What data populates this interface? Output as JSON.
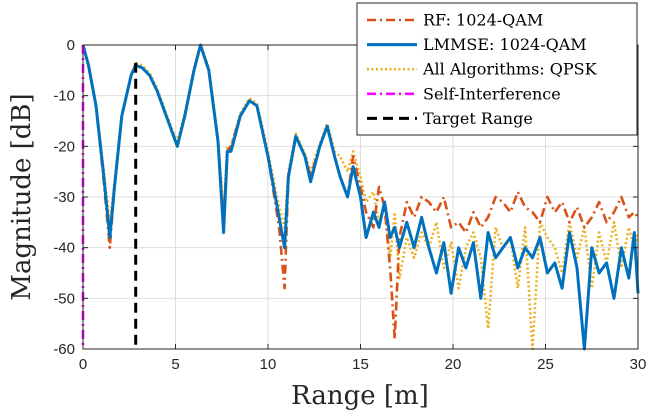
{
  "chart_data": {
    "type": "line",
    "title": "",
    "xlabel": "Range [m]",
    "ylabel": "Magnitude [dB]",
    "xlim": [
      0,
      30
    ],
    "ylim": [
      -60,
      0
    ],
    "xticks": [
      0,
      5,
      10,
      15,
      20,
      25,
      30
    ],
    "yticks": [
      0,
      -10,
      -20,
      -30,
      -40,
      -50,
      -60
    ],
    "grid": true,
    "legend_position": "top-right",
    "series": [
      {
        "name": "RF: 1024-QAM",
        "color": "#D95319",
        "style": "dash-dot",
        "x": [
          0,
          0.3,
          0.7,
          1.1,
          1.45,
          1.7,
          2.1,
          2.6,
          2.85,
          3.2,
          3.6,
          4.0,
          4.4,
          4.8,
          5.1,
          5.5,
          6.0,
          6.35,
          6.8,
          7.3,
          7.6,
          7.8,
          8.0,
          8.5,
          9.0,
          9.4,
          10.0,
          10.6,
          10.9,
          11.1,
          11.5,
          12.0,
          12.3,
          12.8,
          13.2,
          13.6,
          13.9,
          14.3,
          14.6,
          15.0,
          15.3,
          15.7,
          16.0,
          16.3,
          16.6,
          16.85,
          17.1,
          17.5,
          17.9,
          18.3,
          18.7,
          19.1,
          19.5,
          19.9,
          20.3,
          20.7,
          21.1,
          21.5,
          21.9,
          22.3,
          22.7,
          23.1,
          23.5,
          23.9,
          24.3,
          24.7,
          25.1,
          25.5,
          25.9,
          26.3,
          26.7,
          27.1,
          27.5,
          27.9,
          28.3,
          28.7,
          29.1,
          29.5,
          29.8,
          30.0
        ],
        "y": [
          0,
          -4,
          -12,
          -26,
          -40,
          -28,
          -14,
          -6,
          -4,
          -4.5,
          -6,
          -9,
          -13,
          -17,
          -20,
          -14,
          -5,
          0,
          -5,
          -19,
          -35,
          -21,
          -20,
          -14,
          -11,
          -12,
          -22,
          -36,
          -48,
          -26,
          -18,
          -22,
          -26,
          -20,
          -16,
          -22,
          -26,
          -30,
          -22,
          -28,
          -33,
          -36,
          -28,
          -32,
          -44,
          -58,
          -38,
          -31,
          -34,
          -30,
          -31,
          -33,
          -30,
          -36,
          -35,
          -37,
          -33,
          -36,
          -34,
          -30,
          -31,
          -33,
          -29,
          -32,
          -33,
          -35,
          -30,
          -33,
          -31,
          -35,
          -32,
          -36,
          -34,
          -31,
          -35,
          -33,
          -30,
          -34,
          -33,
          -34
        ]
      },
      {
        "name": "LMMSE: 1024-QAM",
        "color": "#0072BD",
        "style": "solid",
        "x": [
          0,
          0.3,
          0.7,
          1.1,
          1.45,
          1.7,
          2.1,
          2.6,
          2.85,
          3.2,
          3.6,
          4.0,
          4.4,
          4.8,
          5.1,
          5.5,
          6.0,
          6.35,
          6.8,
          7.3,
          7.6,
          7.8,
          8.0,
          8.5,
          9.0,
          9.4,
          10.0,
          10.6,
          10.9,
          11.1,
          11.5,
          12.0,
          12.3,
          12.8,
          13.2,
          13.6,
          13.9,
          14.3,
          14.6,
          15.0,
          15.3,
          15.7,
          16.0,
          16.3,
          16.6,
          16.85,
          17.1,
          17.5,
          17.9,
          18.3,
          18.7,
          19.1,
          19.5,
          19.9,
          20.3,
          20.7,
          21.1,
          21.5,
          21.9,
          22.3,
          22.7,
          23.1,
          23.5,
          23.9,
          24.3,
          24.7,
          25.1,
          25.5,
          25.9,
          26.3,
          26.7,
          27.1,
          27.5,
          27.9,
          28.3,
          28.7,
          29.1,
          29.5,
          29.8,
          30.0
        ],
        "y": [
          0,
          -4,
          -12,
          -25,
          -38,
          -28,
          -14,
          -6,
          -4,
          -4.5,
          -6,
          -9,
          -13,
          -17,
          -20,
          -14,
          -5,
          0,
          -5,
          -19,
          -37,
          -21,
          -21,
          -14,
          -11,
          -12,
          -22,
          -34,
          -40,
          -26,
          -18,
          -22,
          -27,
          -20,
          -16,
          -22,
          -26,
          -30,
          -24,
          -30,
          -38,
          -33,
          -36,
          -31,
          -38,
          -36,
          -40,
          -35,
          -40,
          -34,
          -40,
          -45,
          -39,
          -49,
          -40,
          -44,
          -39,
          -50,
          -37,
          -42,
          -40,
          -38,
          -44,
          -40,
          -42,
          -38,
          -45,
          -43,
          -48,
          -37,
          -44,
          -60,
          -40,
          -45,
          -43,
          -50,
          -40,
          -46,
          -37,
          -49
        ]
      },
      {
        "name": "All Algorithms: QPSK",
        "color": "#EDB120",
        "style": "dotted",
        "x": [
          0,
          0.3,
          0.7,
          1.1,
          1.45,
          1.7,
          2.1,
          2.6,
          2.85,
          3.2,
          3.6,
          4.0,
          4.4,
          4.8,
          5.1,
          5.5,
          6.0,
          6.35,
          6.8,
          7.3,
          7.6,
          7.8,
          8.0,
          8.5,
          9.0,
          9.4,
          10.0,
          10.6,
          10.9,
          11.1,
          11.5,
          12.0,
          12.3,
          12.8,
          13.2,
          13.6,
          13.9,
          14.3,
          14.6,
          15.0,
          15.3,
          15.7,
          16.0,
          16.3,
          16.6,
          16.85,
          17.1,
          17.5,
          17.9,
          18.3,
          18.7,
          19.1,
          19.5,
          19.9,
          20.3,
          20.7,
          21.1,
          21.5,
          21.9,
          22.3,
          22.7,
          23.1,
          23.5,
          23.9,
          24.3,
          24.7,
          25.1,
          25.5,
          25.9,
          26.3,
          26.7,
          27.1,
          27.5,
          27.9,
          28.3,
          28.7,
          29.1,
          29.5,
          29.8,
          30.0
        ],
        "y": [
          0,
          -4,
          -12,
          -24,
          -35,
          -27,
          -14,
          -6,
          -3.5,
          -4,
          -5.5,
          -8.5,
          -12.5,
          -16.5,
          -19,
          -13.5,
          -4.5,
          0,
          -4.5,
          -18.5,
          -33,
          -20,
          -20,
          -13.5,
          -10.5,
          -11.5,
          -21,
          -32,
          -36,
          -25,
          -17.5,
          -21.5,
          -25,
          -19.5,
          -15.5,
          -21,
          -22,
          -25,
          -21,
          -26,
          -31,
          -29,
          -35,
          -31,
          -42,
          -33,
          -46,
          -38,
          -42,
          -37,
          -40,
          -35,
          -44,
          -39,
          -48,
          -40,
          -37,
          -42,
          -56,
          -36,
          -40,
          -38,
          -48,
          -36,
          -60,
          -35,
          -38,
          -40,
          -45,
          -35,
          -42,
          -36,
          -48,
          -37,
          -43,
          -35,
          -44,
          -36,
          -40,
          -37
        ]
      },
      {
        "name": "Self-Interference",
        "color": "#FF00FF",
        "style": "dash-dot",
        "x": [
          0,
          0
        ],
        "y": [
          0,
          -60
        ]
      },
      {
        "name": "Target Range",
        "color": "#000000",
        "style": "dashed",
        "x": [
          2.85,
          2.85
        ],
        "y": [
          -3.5,
          -60
        ]
      }
    ]
  }
}
